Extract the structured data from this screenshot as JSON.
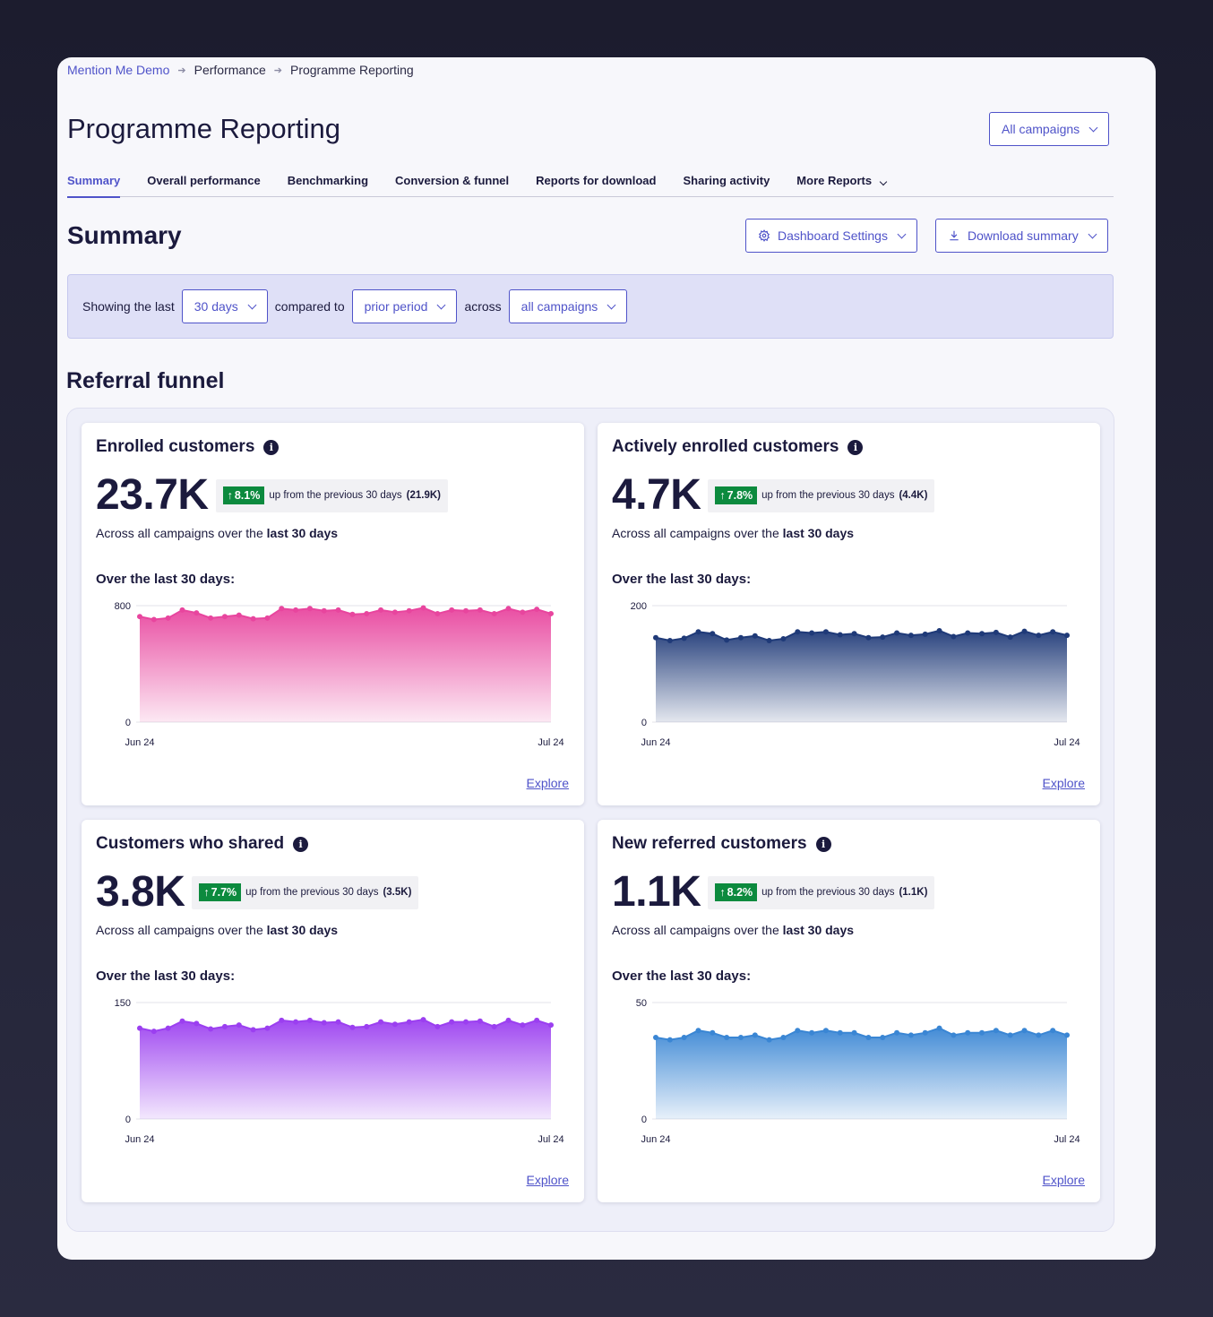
{
  "breadcrumb": [
    "Mention Me Demo",
    "Performance",
    "Programme Reporting"
  ],
  "page": {
    "title": "Programme Reporting",
    "campaign_select": "All campaigns"
  },
  "tabs": [
    "Summary",
    "Overall performance",
    "Benchmarking",
    "Conversion & funnel",
    "Reports for download",
    "Sharing activity",
    "More Reports"
  ],
  "summary": {
    "title": "Summary",
    "dashboard_settings": "Dashboard Settings",
    "download_summary": "Download summary"
  },
  "filters": {
    "showing_label": "Showing the last",
    "period": "30 days",
    "compared_label": "compared to",
    "comparison": "prior period",
    "across_label": "across",
    "campaigns": "all campaigns"
  },
  "funnel": {
    "title": "Referral funnel",
    "cards": [
      {
        "title": "Enrolled customers",
        "value": "23.7K",
        "change": "8.1%",
        "change_text": "up from the previous 30 days",
        "previous": "(21.9K)",
        "sub_prefix": "Across all campaigns over the",
        "sub_bold": "last 30 days",
        "over_label": "Over the last 30 days:",
        "explore": "Explore",
        "color": "#e8459e"
      },
      {
        "title": "Actively enrolled customers",
        "value": "4.7K",
        "change": "7.8%",
        "change_text": "up from the previous 30 days",
        "previous": "(4.4K)",
        "sub_prefix": "Across all campaigns over the",
        "sub_bold": "last 30 days",
        "over_label": "Over the last 30 days:",
        "explore": "Explore",
        "color": "#1f3a78"
      },
      {
        "title": "Customers who shared",
        "value": "3.8K",
        "change": "7.7%",
        "change_text": "up from the previous 30 days",
        "previous": "(3.5K)",
        "sub_prefix": "Across all campaigns over the",
        "sub_bold": "last 30 days",
        "over_label": "Over the last 30 days:",
        "explore": "Explore",
        "color": "#9b3ff0"
      },
      {
        "title": "New referred customers",
        "value": "1.1K",
        "change": "8.2%",
        "change_text": "up from the previous 30 days",
        "previous": "(1.1K)",
        "sub_prefix": "Across all campaigns over the",
        "sub_bold": "last 30 days",
        "over_label": "Over the last 30 days:",
        "explore": "Explore",
        "color": "#3a86d4"
      }
    ]
  },
  "chart_data": [
    {
      "type": "area",
      "x_start": "Jun 24",
      "x_end": "Jul 24",
      "ylim": [
        0,
        800
      ],
      "yticks": [
        0,
        800
      ],
      "series": [
        {
          "values": [
            725,
            705,
            715,
            770,
            750,
            715,
            725,
            735,
            710,
            715,
            780,
            770,
            780,
            765,
            770,
            740,
            745,
            770,
            755,
            765,
            785,
            745,
            770,
            765,
            770,
            745,
            780,
            755,
            775,
            745
          ]
        }
      ]
    },
    {
      "type": "area",
      "x_start": "Jun 24",
      "x_end": "Jul 24",
      "ylim": [
        0,
        200
      ],
      "yticks": [
        0,
        200
      ],
      "series": [
        {
          "values": [
            145,
            140,
            144,
            155,
            152,
            141,
            145,
            148,
            140,
            143,
            155,
            153,
            155,
            150,
            152,
            145,
            146,
            153,
            149,
            151,
            157,
            147,
            153,
            152,
            154,
            146,
            156,
            149,
            155,
            149
          ]
        }
      ]
    },
    {
      "type": "area",
      "x_start": "Jun 24",
      "x_end": "Jul 24",
      "ylim": [
        0,
        150
      ],
      "yticks": [
        0,
        150
      ],
      "series": [
        {
          "values": [
            117,
            113,
            117,
            126,
            123,
            116,
            119,
            121,
            115,
            117,
            127,
            125,
            127,
            124,
            125,
            118,
            119,
            125,
            122,
            125,
            128,
            119,
            125,
            125,
            126,
            119,
            127,
            121,
            127,
            121
          ]
        }
      ]
    },
    {
      "type": "area",
      "x_start": "Jun 24",
      "x_end": "Jul 24",
      "ylim": [
        0,
        50
      ],
      "yticks": [
        0,
        50
      ],
      "series": [
        {
          "values": [
            35,
            34,
            35,
            38,
            37,
            35,
            35,
            36,
            34,
            35,
            38,
            37,
            38,
            37,
            37,
            35,
            35,
            37,
            36,
            37,
            39,
            36,
            37,
            37,
            38,
            36,
            38,
            36,
            38,
            36
          ]
        }
      ]
    }
  ]
}
